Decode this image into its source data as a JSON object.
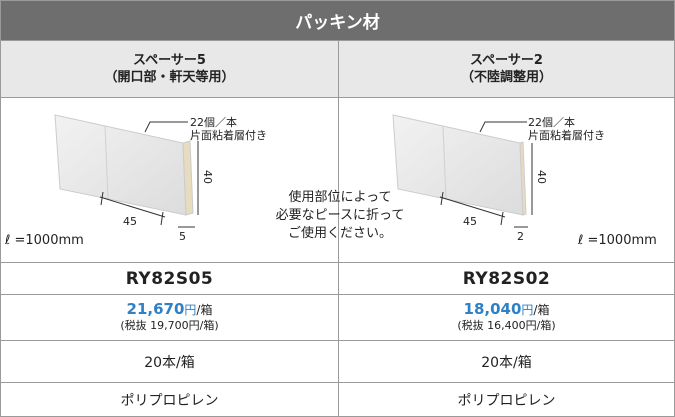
{
  "header": {
    "title": "パッキン材"
  },
  "products": [
    {
      "name": "スペーサー5",
      "use": "（開口部・軒天等用）",
      "drawing": {
        "count": "22個／本",
        "adhesive": "片面粘着層付き",
        "height": "40",
        "width": "45",
        "thickness": "5",
        "length": "ℓ =1000mm"
      },
      "model": "RY82S05",
      "price": "21,670",
      "price_unit": "円",
      "per": "/箱",
      "price_excl": "(税抜 19,700円/箱)",
      "quantity": "20本/箱",
      "material": "ポリプロピレン"
    },
    {
      "name": "スペーサー2",
      "use": "（不陸調整用）",
      "drawing": {
        "count": "22個／本",
        "adhesive": "片面粘着層付き",
        "height": "40",
        "width": "45",
        "thickness": "2",
        "length": "ℓ =1000mm"
      },
      "model": "RY82S02",
      "price": "18,040",
      "price_unit": "円",
      "per": "/箱",
      "price_excl": "(税抜 16,400円/箱)",
      "quantity": "20本/箱",
      "material": "ポリプロピレン"
    }
  ],
  "note": [
    "使用部位によって",
    "必要なピースに折って",
    "ご使用ください。"
  ]
}
